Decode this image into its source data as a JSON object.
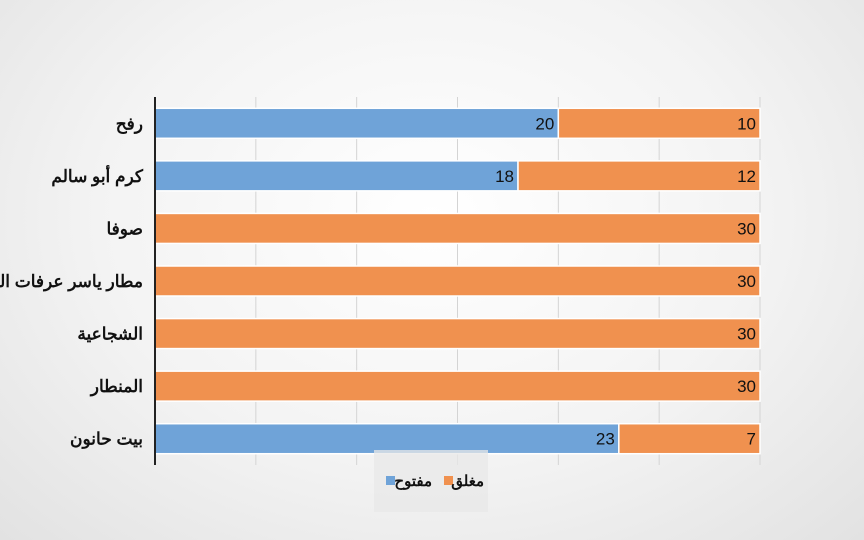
{
  "chart_data": {
    "type": "bar",
    "orientation": "horizontal",
    "stacked": true,
    "categories": [
      "رفح",
      "كرم أبو سالم",
      "صوفا",
      "مطار ياسر عرفات الدولي",
      "الشجاعية",
      "المنطار",
      "بيت حانون"
    ],
    "series": [
      {
        "name": "مفتوح",
        "values": [
          20,
          18,
          0,
          0,
          0,
          0,
          23
        ],
        "color": "#6fa3d8"
      },
      {
        "name": "مغلق",
        "values": [
          10,
          12,
          30,
          30,
          30,
          30,
          7
        ],
        "color": "#f0914f"
      }
    ],
    "xlim": [
      0,
      30
    ],
    "grid": true,
    "legend_position": "bottom",
    "data_labels": true,
    "title": "",
    "xlabel": "",
    "ylabel": ""
  }
}
